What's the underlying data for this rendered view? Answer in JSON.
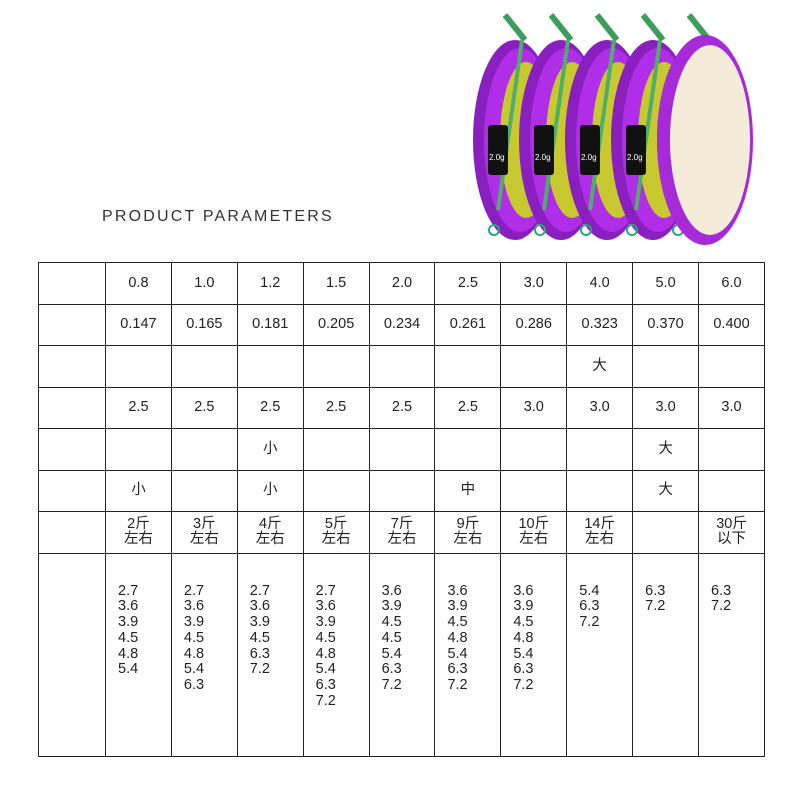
{
  "title": "PRODUCT PARAMETERS",
  "product_image": {
    "weight_label": "2.0g",
    "count": 5
  },
  "table": {
    "sizes": [
      "0.8",
      "1.0",
      "1.2",
      "1.5",
      "2.0",
      "2.5",
      "3.0",
      "4.0",
      "5.0",
      "6.0"
    ],
    "diameters": [
      "0.147",
      "0.165",
      "0.181",
      "0.205",
      "0.234",
      "0.261",
      "0.286",
      "0.323",
      "0.370",
      "0.400"
    ],
    "row3": [
      "",
      "",
      "",
      "",
      "",
      "",
      "",
      "大",
      "",
      ""
    ],
    "row4": [
      "2.5",
      "2.5",
      "2.5",
      "2.5",
      "2.5",
      "2.5",
      "3.0",
      "3.0",
      "3.0",
      "3.0"
    ],
    "row5": [
      "",
      "",
      "小",
      "",
      "",
      "",
      "",
      "",
      "大",
      ""
    ],
    "row6": [
      "小",
      "",
      "小",
      "",
      "",
      "中",
      "",
      "",
      "大",
      ""
    ],
    "tension": [
      [
        "2斤",
        "左右"
      ],
      [
        "3斤",
        "左右"
      ],
      [
        "4斤",
        "左右"
      ],
      [
        "5斤",
        "左右"
      ],
      [
        "7斤",
        "左右"
      ],
      [
        "9斤",
        "左右"
      ],
      [
        "10斤",
        "左右"
      ],
      [
        "14斤",
        "左右"
      ],
      [
        "",
        ""
      ],
      [
        "30斤",
        "以下"
      ]
    ],
    "lengths": [
      [
        "2.7",
        "3.6",
        "3.9",
        "4.5",
        "4.8",
        "5.4"
      ],
      [
        "2.7",
        "3.6",
        "3.9",
        "4.5",
        "4.8",
        "5.4",
        "6.3"
      ],
      [
        "2.7",
        "3.6",
        "3.9",
        "4.5",
        "6.3",
        "7.2"
      ],
      [
        "2.7",
        "3.6",
        "3.9",
        "4.5",
        "4.8",
        "5.4",
        "6.3",
        "7.2"
      ],
      [
        "3.6",
        "3.9",
        "4.5",
        "4.5",
        "5.4",
        "6.3",
        "7.2"
      ],
      [
        "3.6",
        "3.9",
        "4.5",
        "4.8",
        "5.4",
        "6.3",
        "7.2"
      ],
      [
        "3.6",
        "3.9",
        "4.5",
        "4.8",
        "5.4",
        "6.3",
        "7.2"
      ],
      [
        "5.4",
        "6.3",
        "7.2"
      ],
      [
        "6.3",
        "7.2"
      ],
      [
        "6.3",
        "7.2"
      ]
    ]
  }
}
